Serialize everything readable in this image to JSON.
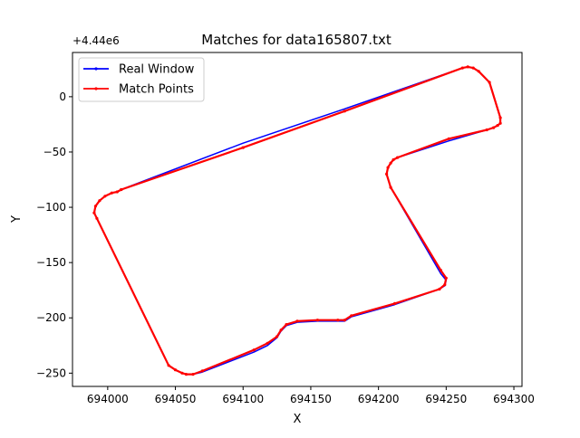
{
  "chart_data": {
    "type": "line",
    "title": "Matches for data165807.txt",
    "xlabel": "X",
    "ylabel": "Y",
    "y_offset_label": "+4.44e6",
    "xlim": [
      693974,
      694306
    ],
    "ylim": [
      -262,
      40
    ],
    "x_ticks": [
      694000,
      694050,
      694100,
      694150,
      694200,
      694250,
      694300
    ],
    "x_tick_labels": [
      "694000",
      "694050",
      "694100",
      "694150",
      "694200",
      "694250",
      "694300"
    ],
    "y_ticks": [
      0,
      -50,
      -100,
      -150,
      -200,
      -250
    ],
    "y_tick_labels": [
      "0",
      "−50",
      "−100",
      "−150",
      "−200",
      "−250"
    ],
    "grid": false,
    "legend_position": "upper-left",
    "series": [
      {
        "name": "Real Window",
        "color": "#0000ff",
        "x": [
          694010,
          694100,
          694175,
          694262,
          694266,
          694270,
          694274,
          694282,
          694290,
          694290,
          694288,
          694285,
          694280,
          694252,
          694214,
          694211,
          694209,
          694207,
          694206,
          694209,
          694246,
          694250,
          694249,
          694245,
          694212,
          694180,
          694175,
          694170,
          694155,
          694140,
          694132,
          694128,
          694125,
          694118,
          694108,
          694070,
          694063,
          694058,
          694055,
          694050,
          694045,
          693992,
          693990,
          693991,
          693994,
          693998,
          694003,
          694007,
          694010
        ],
        "y": [
          -84,
          -42,
          -11,
          26,
          27,
          26,
          23,
          13,
          -19,
          -24,
          -26,
          -28,
          -30,
          -40,
          -55,
          -57,
          -60,
          -64,
          -70,
          -82,
          -160,
          -166,
          -171,
          -174,
          -188,
          -199,
          -203,
          -203,
          -203,
          -204,
          -207,
          -212,
          -218,
          -225,
          -231,
          -249,
          -251,
          -251,
          -250,
          -247,
          -243,
          -110,
          -105,
          -99,
          -94,
          -90,
          -87,
          -86,
          -84
        ]
      },
      {
        "name": "Match Points",
        "color": "#ff0000",
        "x": [
          694010,
          694100,
          694175,
          694262,
          694266,
          694270,
          694274,
          694282,
          694290,
          694290,
          694288,
          694285,
          694280,
          694252,
          694214,
          694211,
          694209,
          694207,
          694206,
          694209,
          694246,
          694250,
          694249,
          694245,
          694212,
          694180,
          694175,
          694170,
          694155,
          694140,
          694132,
          694128,
          694125,
          694118,
          694108,
          694070,
          694063,
          694058,
          694055,
          694050,
          694045,
          693992,
          693990,
          693991,
          693994,
          693998,
          694003,
          694007,
          694010
        ],
        "y": [
          -84,
          -46,
          -13,
          26,
          27,
          26,
          23,
          13,
          -19,
          -24,
          -26,
          -28,
          -30,
          -38,
          -55,
          -57,
          -60,
          -64,
          -70,
          -82,
          -157,
          -164,
          -170,
          -174,
          -187,
          -198,
          -202,
          -202,
          -202,
          -203,
          -206,
          -211,
          -217,
          -223,
          -229,
          -248,
          -251,
          -251,
          -250,
          -247,
          -243,
          -110,
          -105,
          -99,
          -94,
          -90,
          -87,
          -86,
          -84
        ]
      }
    ]
  }
}
